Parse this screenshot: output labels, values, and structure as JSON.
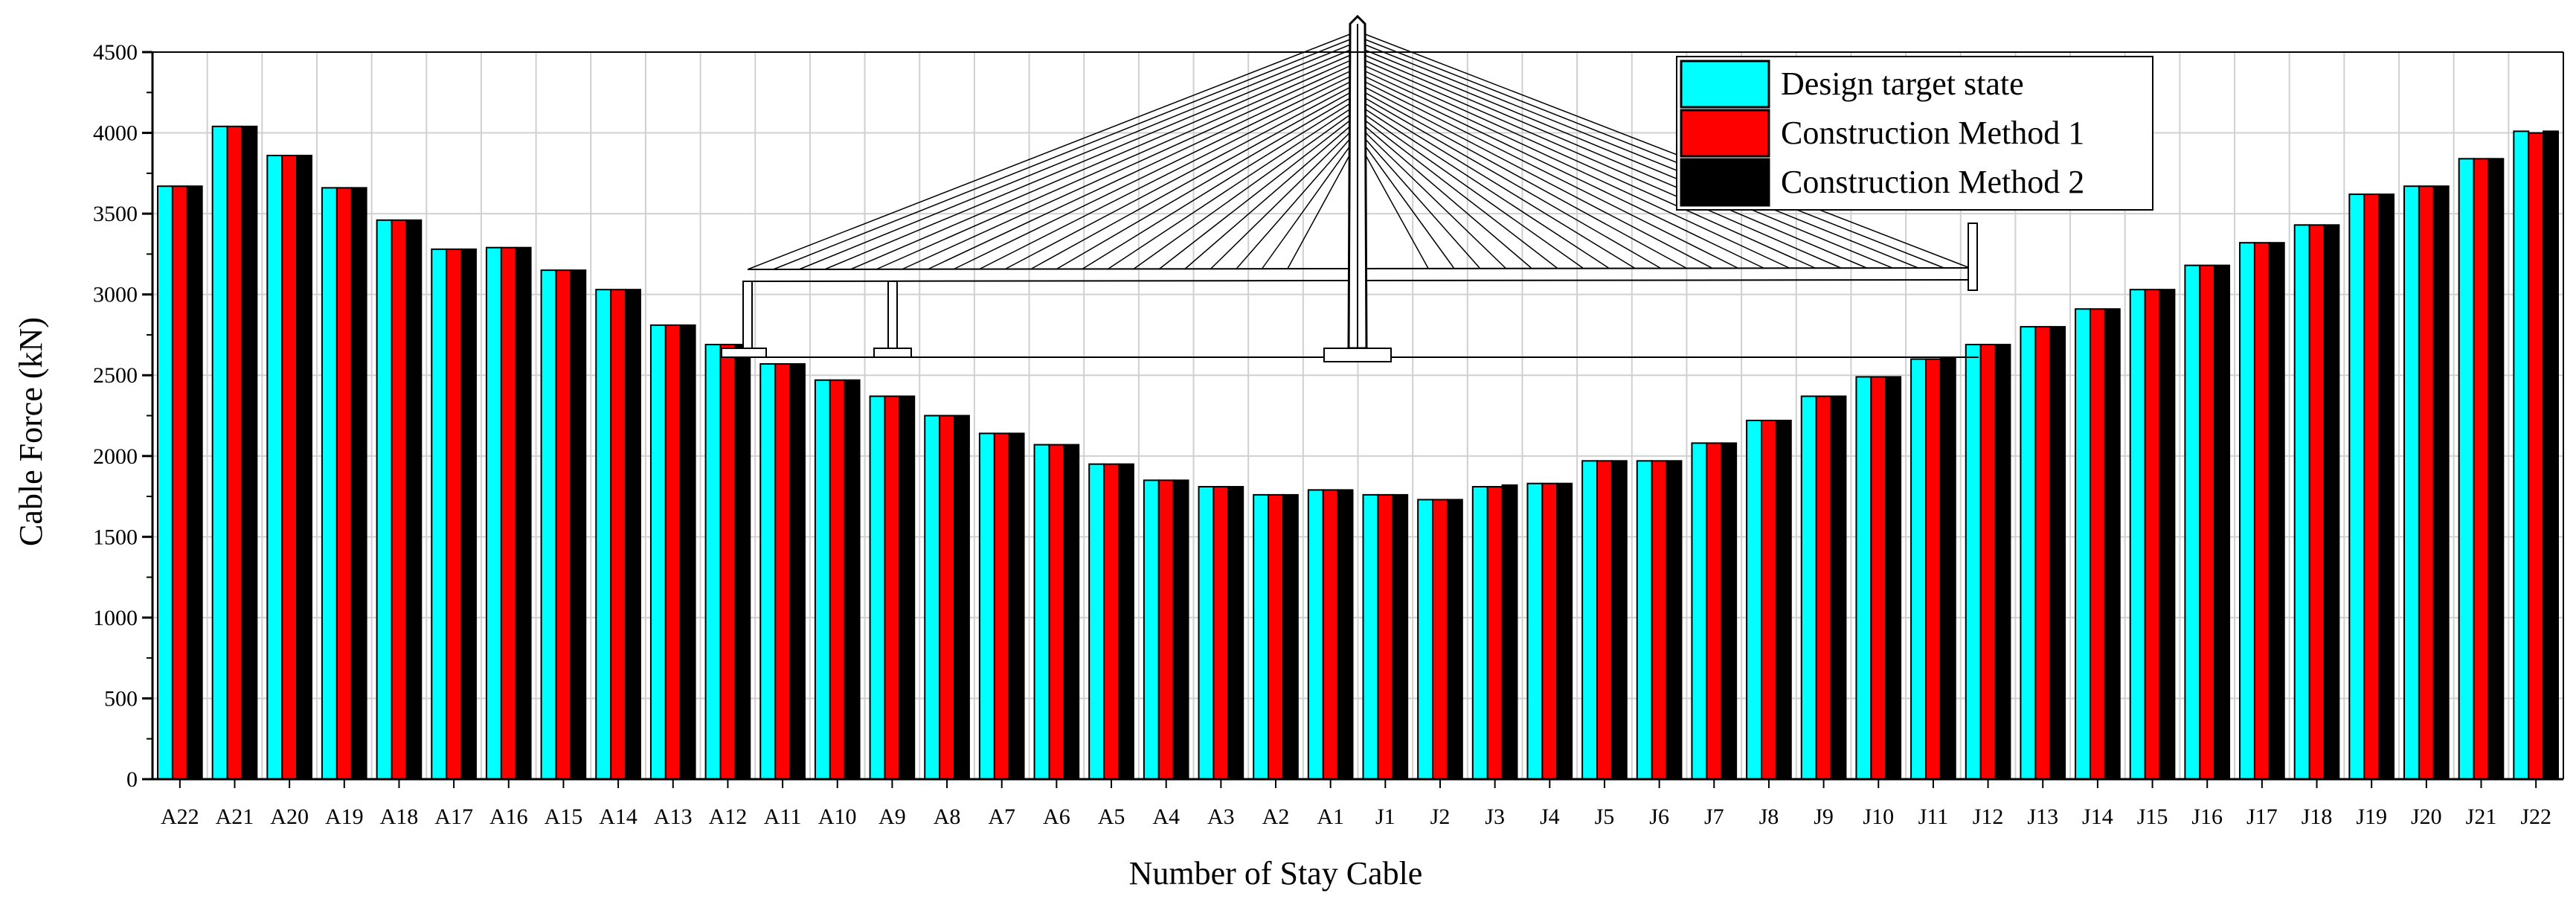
{
  "chart_data": {
    "type": "bar",
    "title": "",
    "xlabel": "Number of Stay Cable",
    "ylabel": "Cable Force (kN)",
    "ylim": [
      0,
      4500
    ],
    "yticks": [
      0,
      500,
      1000,
      1500,
      2000,
      2500,
      3000,
      3500,
      4000,
      4500
    ],
    "grid": true,
    "legend_position": "top-right",
    "categories": [
      "A22",
      "A21",
      "A20",
      "A19",
      "A18",
      "A17",
      "A16",
      "A15",
      "A14",
      "A13",
      "A12",
      "A11",
      "A10",
      "A9",
      "A8",
      "A7",
      "A6",
      "A5",
      "A4",
      "A3",
      "A2",
      "A1",
      "J1",
      "J2",
      "J3",
      "J4",
      "J5",
      "J6",
      "J7",
      "J8",
      "J9",
      "J10",
      "J11",
      "J12",
      "J13",
      "J14",
      "J15",
      "J16",
      "J17",
      "J18",
      "J19",
      "J20",
      "J21",
      "J22"
    ],
    "series": [
      {
        "name": "Design target state",
        "color": "#00ffff",
        "values": [
          3670,
          4040,
          3860,
          3660,
          3460,
          3280,
          3290,
          3150,
          3030,
          2810,
          2690,
          2570,
          2470,
          2370,
          2250,
          2140,
          2070,
          1950,
          1850,
          1810,
          1760,
          1790,
          1760,
          1730,
          1810,
          1830,
          1970,
          1970,
          2080,
          2220,
          2370,
          2490,
          2600,
          2690,
          2800,
          2910,
          3030,
          3180,
          3320,
          3430,
          3620,
          3670,
          3840,
          4010
        ]
      },
      {
        "name": "Construction Method 1",
        "color": "#ff0000",
        "values": [
          3670,
          4040,
          3860,
          3660,
          3460,
          3280,
          3290,
          3150,
          3030,
          2810,
          2690,
          2570,
          2470,
          2370,
          2250,
          2140,
          2070,
          1950,
          1850,
          1810,
          1760,
          1790,
          1760,
          1730,
          1810,
          1830,
          1970,
          1970,
          2080,
          2220,
          2370,
          2490,
          2600,
          2690,
          2800,
          2910,
          3030,
          3180,
          3320,
          3430,
          3620,
          3670,
          3840,
          4000
        ]
      },
      {
        "name": "Construction Method 2",
        "color": "#000000",
        "values": [
          3670,
          4040,
          3860,
          3660,
          3460,
          3280,
          3290,
          3150,
          3030,
          2810,
          2690,
          2570,
          2470,
          2370,
          2250,
          2140,
          2070,
          1950,
          1850,
          1810,
          1760,
          1790,
          1760,
          1730,
          1820,
          1830,
          1970,
          1970,
          2080,
          2220,
          2370,
          2490,
          2610,
          2690,
          2800,
          2910,
          3030,
          3180,
          3320,
          3430,
          3620,
          3670,
          3840,
          4010
        ]
      }
    ]
  }
}
